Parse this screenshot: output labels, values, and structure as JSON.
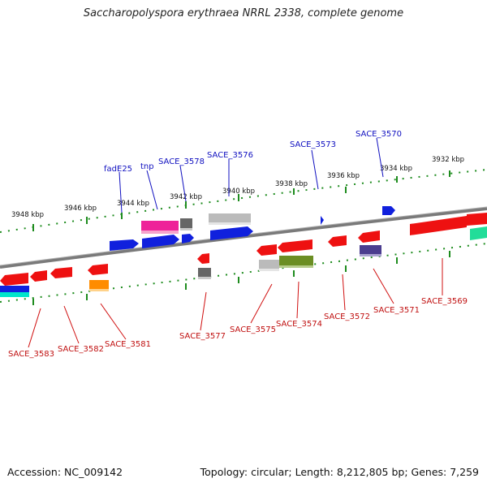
{
  "title": "Saccharopolyspora erythraea NRRL 2338, complete genome",
  "footer": {
    "accession": "Accession: NC_009142",
    "stats": "Topology: circular; Length: 8,212,805 bp; Genes: 7,259"
  },
  "colors": {
    "backbone": "#808080",
    "tick": "#1e8c1e",
    "label_top": "#1010c0",
    "label_bottom": "#c01010",
    "leader_top": "#1010c0",
    "leader_bottom": "#d01010"
  },
  "ticks_top": [
    "3948 kbp",
    "3946 kbp",
    "3944 kbp",
    "3942 kbp",
    "3940 kbp",
    "3938 kbp",
    "3936 kbp",
    "3934 kbp",
    "3932 kbp"
  ],
  "labels_top": [
    "fadE25",
    "tnp",
    "SACE_3578",
    "SACE_3576",
    "SACE_3573",
    "SACE_3570"
  ],
  "labels_bottom": [
    "SACE_3583",
    "SACE_3582",
    "SACE_3581",
    "SACE_3577",
    "SACE_3575",
    "SACE_3574",
    "SACE_3572",
    "SACE_3571",
    "SACE_3569"
  ],
  "gene_colors": {
    "red": "#ee1111",
    "blue": "#1020dd",
    "magenta": "#ee2299",
    "gray": "#bbbbbb",
    "darkgray": "#666666",
    "olive": "#6b8e23",
    "orange": "#ff8c00",
    "purple": "#4b3d8f",
    "cyan": "#00e5cc",
    "green": "#22dd99"
  }
}
